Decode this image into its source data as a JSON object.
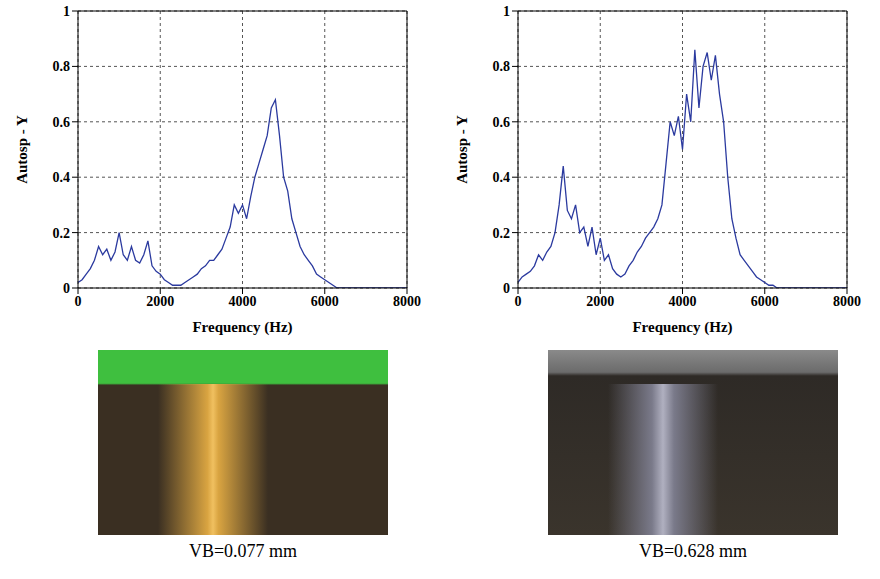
{
  "chart_data": [
    {
      "type": "line",
      "x_label": "Frequency (Hz)",
      "y_label": "Autosp - Y",
      "color": "#2b3a9f",
      "grid": true,
      "xlim": [
        0,
        8000
      ],
      "xticks": [
        0,
        2000,
        4000,
        6000,
        8000
      ],
      "ylim": [
        0,
        1
      ],
      "yticks": [
        0,
        0.2,
        0.4,
        0.6,
        0.8,
        1
      ],
      "x": [
        0,
        100,
        200,
        300,
        400,
        500,
        600,
        700,
        800,
        900,
        1000,
        1100,
        1200,
        1300,
        1400,
        1500,
        1600,
        1700,
        1800,
        1900,
        2000,
        2100,
        2200,
        2300,
        2400,
        2500,
        2600,
        2700,
        2800,
        2900,
        3000,
        3100,
        3200,
        3300,
        3400,
        3500,
        3600,
        3700,
        3800,
        3900,
        4000,
        4100,
        4200,
        4300,
        4400,
        4500,
        4600,
        4700,
        4800,
        4900,
        5000,
        5100,
        5200,
        5300,
        5400,
        5500,
        5600,
        5700,
        5800,
        5900,
        6000,
        6100,
        6200,
        6300,
        6400,
        6500,
        6600,
        6700,
        6800,
        6900,
        7000,
        7100,
        7200,
        7300,
        7400,
        7500,
        7600,
        7700,
        7800,
        7900,
        8000
      ],
      "values": [
        0.02,
        0.03,
        0.05,
        0.07,
        0.1,
        0.15,
        0.12,
        0.14,
        0.1,
        0.13,
        0.2,
        0.12,
        0.1,
        0.15,
        0.1,
        0.09,
        0.12,
        0.17,
        0.08,
        0.06,
        0.05,
        0.03,
        0.02,
        0.01,
        0.01,
        0.01,
        0.02,
        0.03,
        0.04,
        0.05,
        0.07,
        0.08,
        0.1,
        0.1,
        0.12,
        0.14,
        0.18,
        0.22,
        0.3,
        0.27,
        0.3,
        0.25,
        0.33,
        0.4,
        0.45,
        0.5,
        0.55,
        0.65,
        0.68,
        0.55,
        0.4,
        0.35,
        0.25,
        0.2,
        0.15,
        0.12,
        0.1,
        0.08,
        0.05,
        0.04,
        0.03,
        0.02,
        0.01,
        0,
        0,
        0,
        0,
        0,
        0,
        0,
        0,
        0,
        0,
        0,
        0,
        0,
        0,
        0,
        0,
        0,
        0
      ]
    },
    {
      "type": "line",
      "x_label": "Frequency (Hz)",
      "y_label": "Autosp - Y",
      "color": "#2b3a9f",
      "grid": true,
      "xlim": [
        0,
        8000
      ],
      "xticks": [
        0,
        2000,
        4000,
        6000,
        8000
      ],
      "ylim": [
        0,
        1
      ],
      "yticks": [
        0,
        0.2,
        0.4,
        0.6,
        0.8,
        1
      ],
      "x": [
        0,
        100,
        200,
        300,
        400,
        500,
        600,
        700,
        800,
        900,
        1000,
        1100,
        1200,
        1300,
        1400,
        1500,
        1600,
        1700,
        1800,
        1900,
        2000,
        2100,
        2200,
        2300,
        2400,
        2500,
        2600,
        2700,
        2800,
        2900,
        3000,
        3100,
        3200,
        3300,
        3400,
        3500,
        3600,
        3700,
        3800,
        3900,
        4000,
        4100,
        4200,
        4300,
        4400,
        4500,
        4600,
        4700,
        4800,
        4900,
        5000,
        5100,
        5200,
        5300,
        5400,
        5500,
        5600,
        5700,
        5800,
        5900,
        6000,
        6100,
        6200,
        6300,
        6400,
        6500,
        6600,
        6700,
        6800,
        6900,
        7000,
        7100,
        7200,
        7300,
        7400,
        7500,
        7600,
        7700,
        7800,
        7900,
        8000
      ],
      "values": [
        0.02,
        0.04,
        0.05,
        0.06,
        0.08,
        0.12,
        0.1,
        0.13,
        0.15,
        0.2,
        0.3,
        0.44,
        0.28,
        0.25,
        0.3,
        0.2,
        0.22,
        0.15,
        0.22,
        0.12,
        0.18,
        0.1,
        0.12,
        0.07,
        0.05,
        0.04,
        0.05,
        0.08,
        0.1,
        0.13,
        0.15,
        0.18,
        0.2,
        0.22,
        0.25,
        0.3,
        0.45,
        0.6,
        0.55,
        0.62,
        0.5,
        0.7,
        0.6,
        0.86,
        0.65,
        0.8,
        0.85,
        0.75,
        0.84,
        0.7,
        0.6,
        0.4,
        0.25,
        0.18,
        0.12,
        0.1,
        0.08,
        0.06,
        0.04,
        0.03,
        0.02,
        0.01,
        0.01,
        0,
        0,
        0,
        0,
        0,
        0,
        0,
        0,
        0,
        0,
        0,
        0,
        0,
        0,
        0,
        0,
        0,
        0
      ]
    }
  ],
  "images": [
    {
      "caption": "VB=0.077 mm"
    },
    {
      "caption": "VB=0.628 mm"
    }
  ]
}
